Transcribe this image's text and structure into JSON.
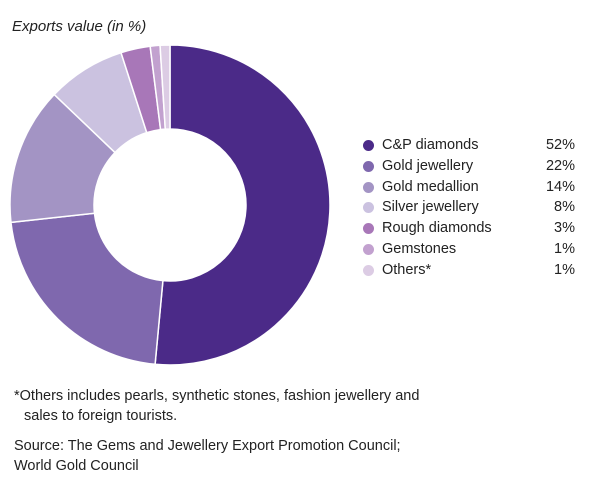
{
  "chart_data": {
    "type": "pie",
    "title": "Exports value (in %)",
    "categories": [
      "C&P diamonds",
      "Gold jewellery",
      "Gold medallion",
      "Silver jewellery",
      "Rough diamonds",
      "Gemstones",
      "Others"
    ],
    "values": [
      52,
      22,
      14,
      8,
      3,
      1,
      1
    ],
    "value_labels": [
      "52%",
      "22%",
      "14%",
      "8%",
      "3%",
      "1%",
      "1%"
    ],
    "colors": [
      "#4b2a88",
      "#7f68ae",
      "#a394c4",
      "#cbc2e0",
      "#a877b8",
      "#c2a1cf",
      "#dccce4"
    ],
    "legend": "right",
    "donut": true
  },
  "footnote": {
    "line1": "*Others includes pearls, synthetic stones, fashion jewellery and",
    "line2": "sales to foreign tourists."
  },
  "source": {
    "line1": "Source: The Gems and Jewellery Export Promotion Council;",
    "line2": "World Gold Council"
  }
}
